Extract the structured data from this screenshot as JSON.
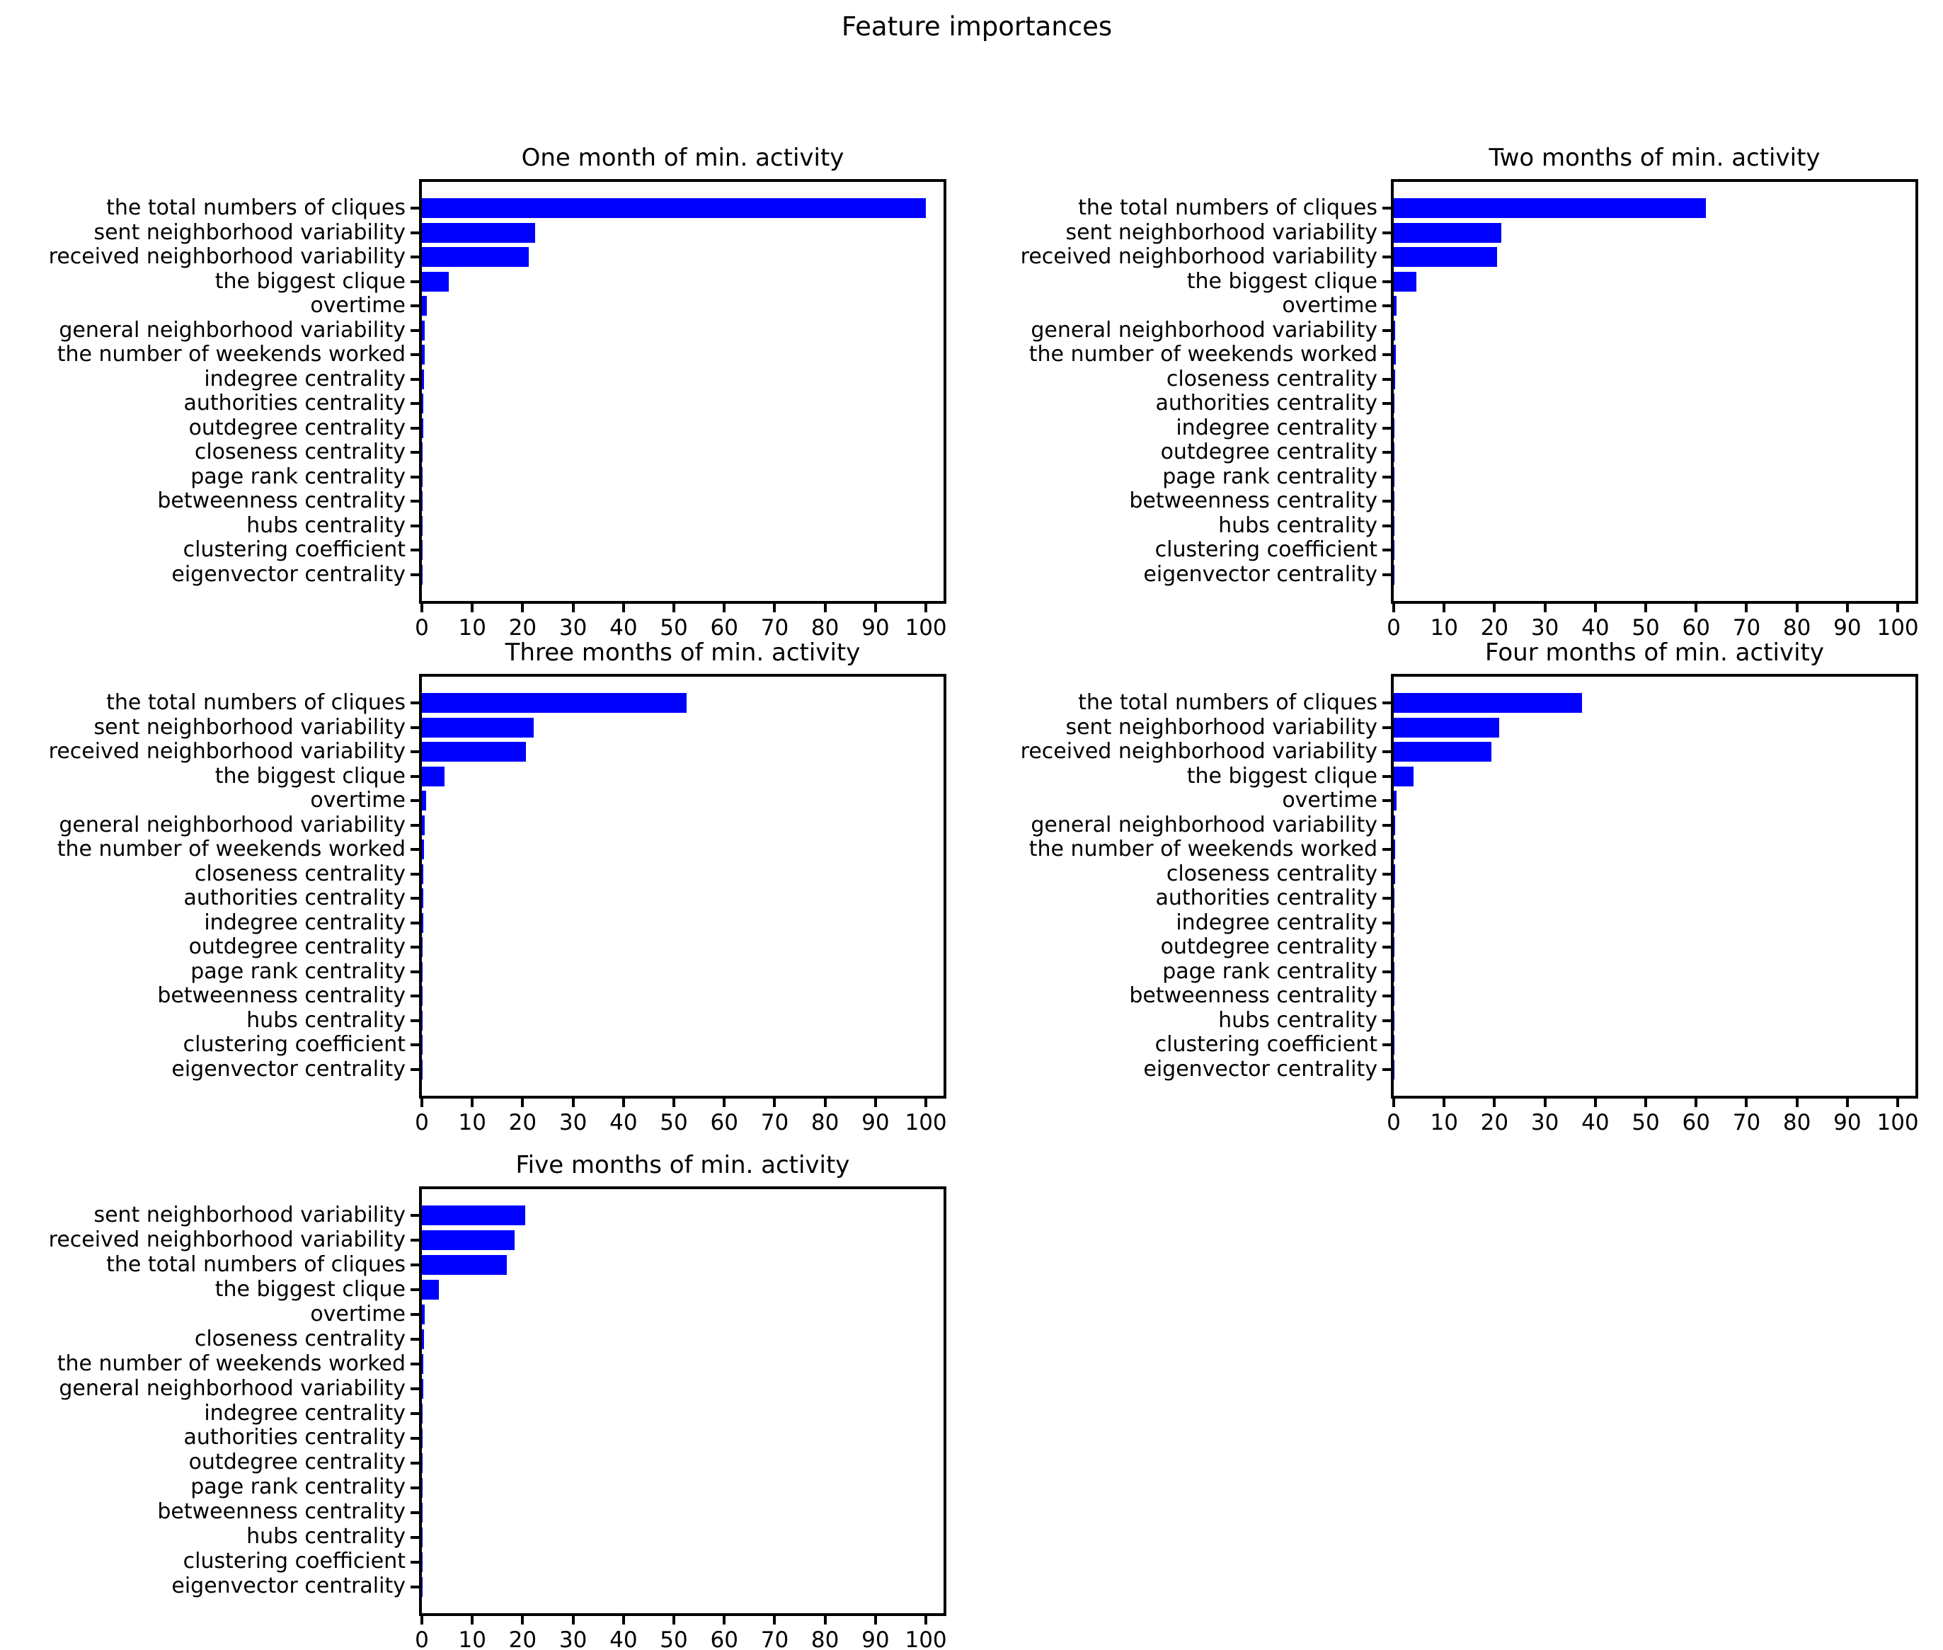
{
  "figure": {
    "suptitle": "Feature importances",
    "bar_color": "#0000ff",
    "background_color": "#ffffff",
    "text_color": "#000000",
    "layout": "grid 3 rows x 2 columns, last cell empty"
  },
  "chart_data": [
    {
      "type": "bar",
      "orientation": "horizontal",
      "title": "One month of min. activity",
      "xlabel": "",
      "ylabel": "",
      "xlim": [
        0,
        103.5
      ],
      "x_ticks": [
        0,
        10,
        20,
        30,
        40,
        50,
        60,
        70,
        80,
        90,
        100
      ],
      "grid": false,
      "bar_color": "#0000ff",
      "categories": [
        "the total numbers of cliques",
        "sent neighborhood variability",
        "received neighborhood variability",
        "the biggest clique",
        "overtime",
        "general neighborhood variability",
        "the number of weekends worked",
        "indegree centrality",
        "authorities centrality",
        "outdegree centrality",
        "closeness centrality",
        "page rank centrality",
        "betweenness centrality",
        "hubs centrality",
        "clustering coefficient",
        "eigenvector centrality"
      ],
      "values": [
        100,
        22.4,
        21.2,
        5.4,
        1.0,
        0.6,
        0.5,
        0.4,
        0.3,
        0.25,
        0.2,
        0.15,
        0.12,
        0.1,
        0.08,
        0.05
      ]
    },
    {
      "type": "bar",
      "orientation": "horizontal",
      "title": "Two months of min. activity",
      "xlabel": "",
      "ylabel": "",
      "xlim": [
        0,
        103.5
      ],
      "x_ticks": [
        0,
        10,
        20,
        30,
        40,
        50,
        60,
        70,
        80,
        90,
        100
      ],
      "grid": false,
      "bar_color": "#0000ff",
      "categories": [
        "the total numbers of cliques",
        "sent neighborhood variability",
        "received neighborhood variability",
        "the biggest clique",
        "overtime",
        "general neighborhood variability",
        "the number of weekends worked",
        "closeness centrality",
        "authorities centrality",
        "indegree centrality",
        "outdegree centrality",
        "page rank centrality",
        "betweenness centrality",
        "hubs centrality",
        "clustering coefficient",
        "eigenvector centrality"
      ],
      "values": [
        62,
        21.4,
        20.5,
        4.5,
        0.6,
        0.3,
        0.4,
        0.25,
        0.2,
        0.15,
        0.12,
        0.1,
        0.08,
        0.06,
        0.05,
        0.05
      ]
    },
    {
      "type": "bar",
      "orientation": "horizontal",
      "title": "Three months of min. activity",
      "xlabel": "",
      "ylabel": "",
      "xlim": [
        0,
        103.5
      ],
      "x_ticks": [
        0,
        10,
        20,
        30,
        40,
        50,
        60,
        70,
        80,
        90,
        100
      ],
      "grid": false,
      "bar_color": "#0000ff",
      "categories": [
        "the total numbers of cliques",
        "sent neighborhood variability",
        "received neighborhood variability",
        "the biggest clique",
        "overtime",
        "general neighborhood variability",
        "the number of weekends worked",
        "closeness centrality",
        "authorities centrality",
        "indegree centrality",
        "outdegree centrality",
        "page rank centrality",
        "betweenness centrality",
        "hubs centrality",
        "clustering coefficient",
        "eigenvector centrality"
      ],
      "values": [
        52.5,
        22.2,
        20.7,
        4.5,
        0.8,
        0.5,
        0.45,
        0.35,
        0.3,
        0.25,
        0.15,
        0.12,
        0.1,
        0.08,
        0.06,
        0.05
      ]
    },
    {
      "type": "bar",
      "orientation": "horizontal",
      "title": "Four months of min. activity",
      "xlabel": "",
      "ylabel": "",
      "xlim": [
        0,
        103.5
      ],
      "x_ticks": [
        0,
        10,
        20,
        30,
        40,
        50,
        60,
        70,
        80,
        90,
        100
      ],
      "grid": false,
      "bar_color": "#0000ff",
      "categories": [
        "the total numbers of cliques",
        "sent neighborhood variability",
        "received neighborhood variability",
        "the biggest clique",
        "overtime",
        "general neighborhood variability",
        "the number of weekends worked",
        "closeness centrality",
        "authorities centrality",
        "indegree centrality",
        "outdegree centrality",
        "page rank centrality",
        "betweenness centrality",
        "hubs centrality",
        "clustering coefficient",
        "eigenvector centrality"
      ],
      "values": [
        37.3,
        20.9,
        19.4,
        4.0,
        0.6,
        0.35,
        0.3,
        0.3,
        0.2,
        0.15,
        0.12,
        0.1,
        0.08,
        0.06,
        0.05,
        0.04
      ]
    },
    {
      "type": "bar",
      "orientation": "horizontal",
      "title": "Five months of min. activity",
      "xlabel": "",
      "ylabel": "",
      "xlim": [
        0,
        103.5
      ],
      "x_ticks": [
        0,
        10,
        20,
        30,
        40,
        50,
        60,
        70,
        80,
        90,
        100
      ],
      "grid": false,
      "bar_color": "#0000ff",
      "categories": [
        "sent neighborhood variability",
        "received neighborhood variability",
        "the total numbers of cliques",
        "the biggest clique",
        "overtime",
        "closeness centrality",
        "the number of weekends worked",
        "general neighborhood variability",
        "indegree centrality",
        "authorities centrality",
        "outdegree centrality",
        "page rank centrality",
        "betweenness centrality",
        "hubs centrality",
        "clustering coefficient",
        "eigenvector centrality"
      ],
      "values": [
        20.5,
        18.4,
        16.8,
        3.4,
        0.55,
        0.4,
        0.3,
        0.25,
        0.12,
        0.08,
        0.06,
        0.05,
        0.05,
        0.04,
        0.04,
        0.03
      ]
    }
  ]
}
